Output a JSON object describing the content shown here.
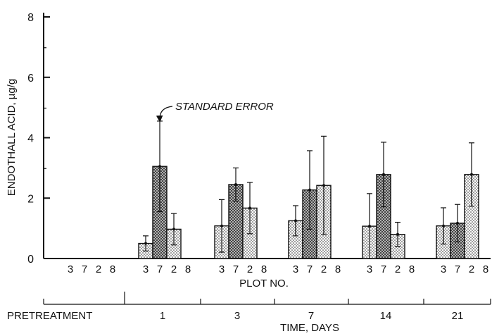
{
  "chart_data": {
    "type": "bar",
    "ylabel": "ENDOTHALL ACID, µg/g",
    "xlabel_plot": "PLOT NO.",
    "xlabel_time": "TIME, DAYS",
    "ylim": [
      0,
      8
    ],
    "yticks": [
      "0",
      "2",
      "4",
      "6",
      "8"
    ],
    "plot_labels": [
      "3",
      "7",
      "2",
      "8"
    ],
    "annotation": "STANDARD ERROR",
    "groups": [
      {
        "time": "PRETREATMENT",
        "values": [
          null,
          null,
          null,
          null
        ],
        "errors": [
          null,
          null,
          null,
          null
        ]
      },
      {
        "time": "1",
        "values": [
          0.5,
          3.05,
          0.97,
          null
        ],
        "errors": [
          0.25,
          1.5,
          0.52,
          null
        ]
      },
      {
        "time": "3",
        "values": [
          1.08,
          2.45,
          1.67,
          null
        ],
        "errors": [
          0.87,
          0.55,
          0.85,
          null
        ]
      },
      {
        "time": "7",
        "values": [
          1.25,
          2.27,
          2.42,
          null
        ],
        "errors": [
          0.5,
          1.3,
          1.63,
          null
        ]
      },
      {
        "time": "14",
        "values": [
          1.07,
          2.78,
          0.8,
          null
        ],
        "errors": [
          1.08,
          1.07,
          0.4,
          null
        ]
      },
      {
        "time": "21",
        "values": [
          1.08,
          1.17,
          2.78,
          null
        ],
        "errors": [
          0.6,
          0.62,
          1.05,
          null
        ]
      }
    ],
    "patterns": {
      "3": "dots",
      "7": "crosshatch",
      "2": "dots",
      "8": "dots"
    }
  }
}
